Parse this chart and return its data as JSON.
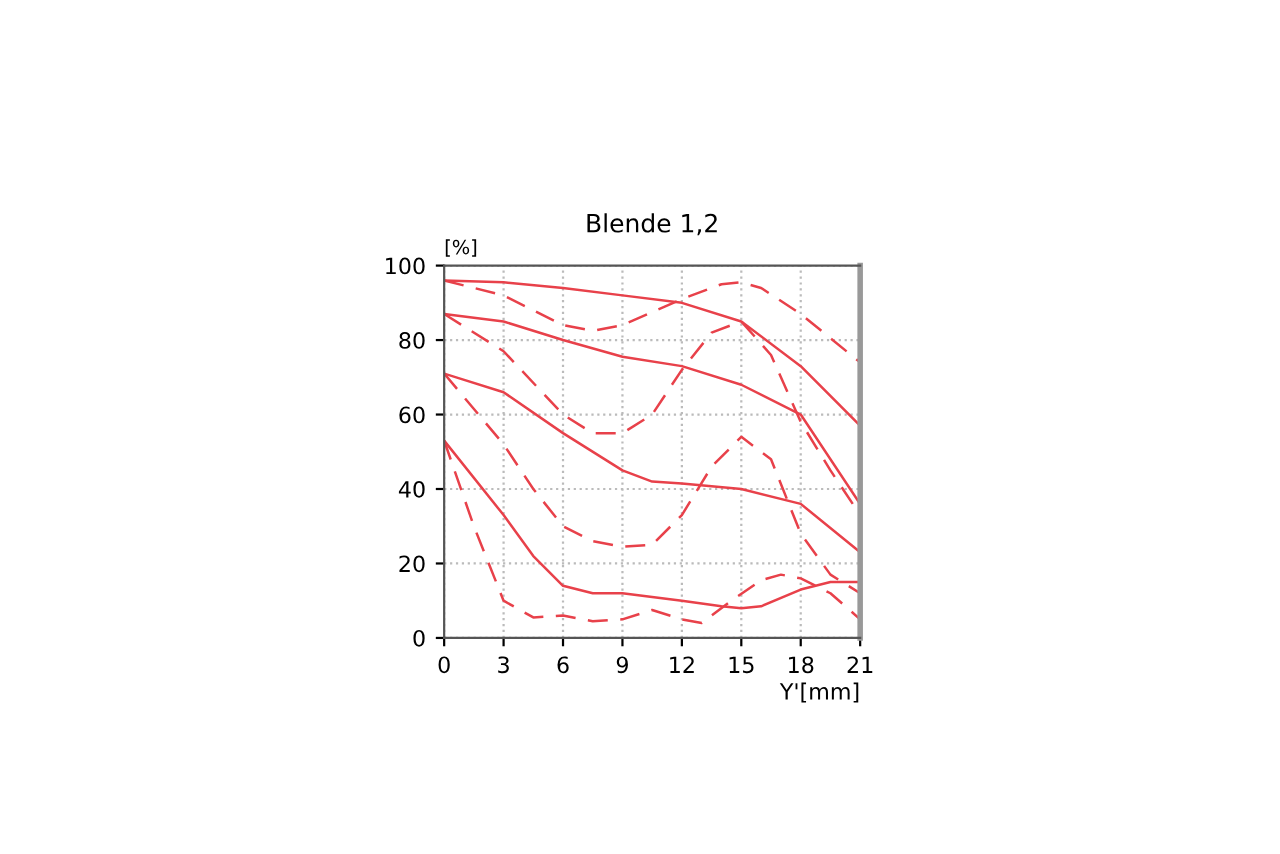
{
  "chart_data": {
    "type": "line",
    "title": "Blende 1,2",
    "ylabel": "[%]",
    "xlabel": "Y'[mm]",
    "xlim": [
      0,
      21
    ],
    "xticks": [
      0,
      3,
      6,
      9,
      12,
      15,
      18,
      21
    ],
    "ylim": [
      0,
      100
    ],
    "yticks": [
      0,
      20,
      40,
      60,
      80,
      100
    ],
    "grid": true,
    "marker": "none",
    "series": [
      {
        "color": "#e8414a",
        "line_style": "solid",
        "x": [
          0,
          3,
          6,
          9,
          12,
          15,
          18,
          21
        ],
        "values": [
          96,
          95.5,
          94,
          92,
          90,
          85,
          73,
          57
        ]
      },
      {
        "color": "#e8414a",
        "line_style": "dashed",
        "x": [
          0,
          3,
          6,
          7.5,
          9,
          12,
          14,
          15,
          16,
          18,
          21
        ],
        "values": [
          96,
          92,
          84,
          82.5,
          84,
          91,
          95,
          95.5,
          94,
          87,
          74
        ]
      },
      {
        "color": "#e8414a",
        "line_style": "solid",
        "x": [
          0,
          3,
          6,
          9,
          12,
          15,
          18,
          21
        ],
        "values": [
          87,
          85,
          80,
          75.5,
          73,
          68,
          60,
          36
        ]
      },
      {
        "color": "#e8414a",
        "line_style": "dashed",
        "x": [
          0,
          3,
          6,
          7.5,
          9,
          10.5,
          12,
          13.5,
          15,
          16.5,
          18,
          19.5,
          21
        ],
        "values": [
          87,
          77,
          60,
          55,
          55,
          60,
          72,
          82,
          85,
          76,
          58,
          45,
          33
        ]
      },
      {
        "color": "#e8414a",
        "line_style": "solid",
        "x": [
          0,
          3,
          6,
          9,
          10.5,
          12,
          15,
          18,
          21
        ],
        "values": [
          71,
          66,
          55,
          45,
          42,
          41.5,
          40,
          36,
          23
        ]
      },
      {
        "color": "#e8414a",
        "line_style": "dashed",
        "x": [
          0,
          3,
          4.5,
          6,
          7.5,
          9,
          10.5,
          12,
          13.5,
          15,
          16.5,
          18,
          19.5,
          21
        ],
        "values": [
          71,
          52,
          40,
          30,
          26,
          24.5,
          25,
          33,
          46,
          54,
          48,
          28,
          17,
          12
        ]
      },
      {
        "color": "#e8414a",
        "line_style": "solid",
        "x": [
          0,
          3,
          4.5,
          6,
          7.5,
          9,
          12,
          14,
          15,
          16,
          18,
          19.5,
          21
        ],
        "values": [
          53,
          33,
          22,
          14,
          12,
          12,
          10,
          8.5,
          8,
          8.5,
          13,
          15,
          15
        ]
      },
      {
        "color": "#e8414a",
        "line_style": "dashed",
        "x": [
          0,
          1.5,
          3,
          4.5,
          6,
          7.5,
          9,
          10.5,
          12,
          13,
          14.5,
          16,
          17,
          18,
          19.5,
          21
        ],
        "values": [
          53,
          30,
          10,
          5.5,
          6,
          4.5,
          5,
          7.5,
          5,
          4,
          10,
          15.5,
          17,
          16,
          12,
          5
        ]
      }
    ]
  }
}
